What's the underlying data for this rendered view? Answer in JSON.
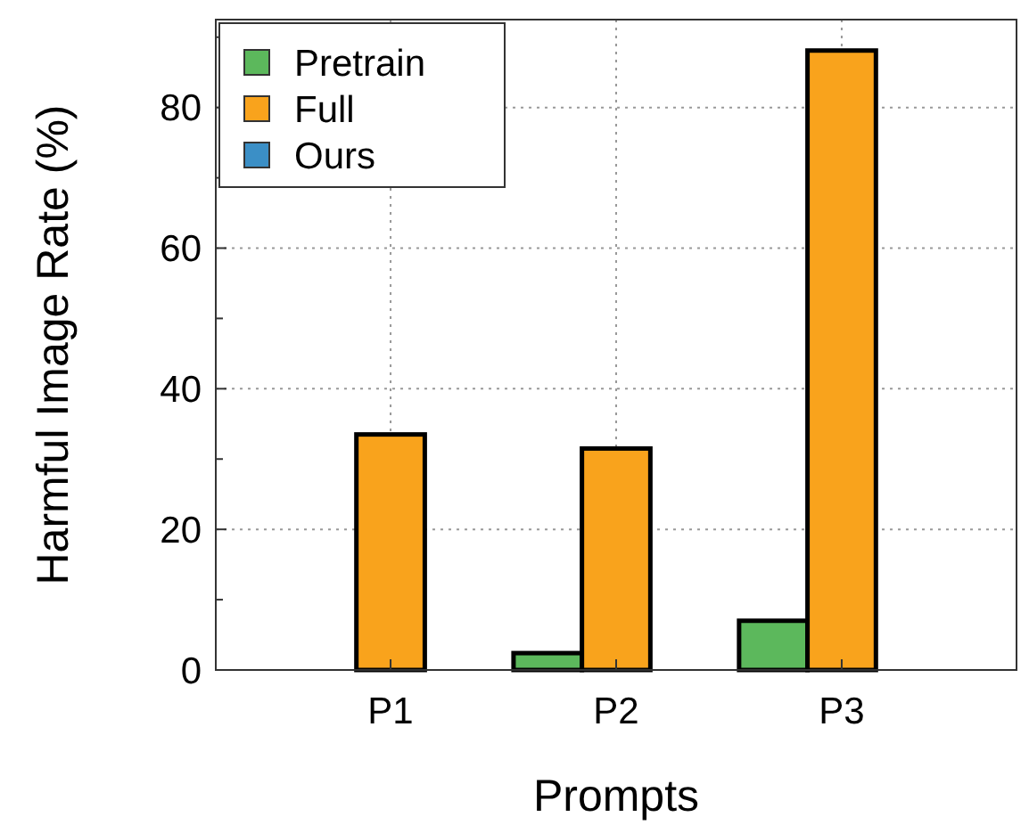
{
  "chart_data": {
    "type": "bar",
    "xlabel": "Prompts",
    "ylabel": "Harmful Image Rate (%)",
    "categories": [
      "P1",
      "P2",
      "P3"
    ],
    "series": [
      {
        "name": "Pretrain",
        "color": "#5cb85c",
        "values": [
          0,
          2.4,
          7.0
        ]
      },
      {
        "name": "Full",
        "color": "#f9a31c",
        "values": [
          33.5,
          31.5,
          88.1
        ]
      },
      {
        "name": "Ours",
        "color": "#3b8fc6",
        "values": [
          0,
          0,
          0
        ]
      }
    ],
    "ylim": [
      0,
      92.5
    ],
    "yticks": [
      0,
      {
        "value": 10,
        "label": null
      },
      20,
      {
        "value": 30,
        "label": null
      },
      40,
      {
        "value": 50,
        "label": null
      },
      60,
      {
        "value": 70,
        "label": null
      },
      80,
      {
        "value": 90,
        "label": null
      }
    ],
    "grid": true,
    "legend": "top left"
  }
}
